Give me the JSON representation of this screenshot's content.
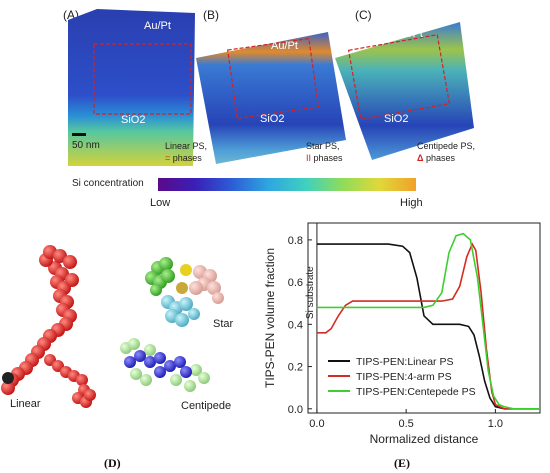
{
  "panels": {
    "a_label": "(A)",
    "b_label": "(B)",
    "c_label": "(C)",
    "d_label": "(D)",
    "e_label": "(E)"
  },
  "tomography": {
    "top_region": "Au/Pt",
    "bottom_region": "SiO2",
    "scale_bar": "50 nm",
    "linear_title": "Linear PS,",
    "linear_symbol": "=",
    "linear_suffix": " phases",
    "star_title": "Star PS,",
    "star_symbol": "II",
    "star_suffix": " phases",
    "centipede_title": "Centipede PS,",
    "centipede_symbol": "Δ",
    "centipede_suffix": " phases"
  },
  "colorbar": {
    "title": "Si concentration",
    "low": "Low",
    "high": "High"
  },
  "molecules": {
    "linear": "Linear",
    "star": "Star",
    "centipede": "Centipede"
  },
  "chart_data": {
    "type": "line",
    "xlabel": "Normalized distance",
    "ylabel": "TIPS-PEN volume fraction",
    "annotation": "Si substrate",
    "xlim": [
      -0.05,
      1.25
    ],
    "ylim": [
      -0.02,
      0.88
    ],
    "xticks": [
      "0.0",
      "0.5",
      "1.0"
    ],
    "yticks": [
      "0.0",
      "0.2",
      "0.4",
      "0.6",
      "0.8"
    ],
    "series": [
      {
        "name": "TIPS-PEN:Linear PS",
        "color": "#111111",
        "x": [
          0.0,
          0.1,
          0.2,
          0.3,
          0.4,
          0.48,
          0.52,
          0.56,
          0.6,
          0.65,
          0.8,
          0.85,
          0.88,
          0.91,
          0.94,
          0.97,
          1.0,
          1.05,
          1.1,
          1.2,
          1.25
        ],
        "y": [
          0.78,
          0.78,
          0.78,
          0.78,
          0.78,
          0.77,
          0.74,
          0.62,
          0.44,
          0.4,
          0.4,
          0.39,
          0.35,
          0.25,
          0.13,
          0.05,
          0.01,
          0.0,
          0.0,
          0.0,
          0.0
        ]
      },
      {
        "name": "TIPS-PEN:4-arm PS",
        "color": "#d42b25",
        "x": [
          0.0,
          0.05,
          0.08,
          0.12,
          0.16,
          0.2,
          0.3,
          0.5,
          0.7,
          0.76,
          0.8,
          0.84,
          0.87,
          0.89,
          0.92,
          0.95,
          0.98,
          1.0,
          1.05,
          1.1,
          1.2,
          1.25
        ],
        "y": [
          0.36,
          0.36,
          0.38,
          0.44,
          0.49,
          0.51,
          0.51,
          0.51,
          0.51,
          0.52,
          0.58,
          0.72,
          0.78,
          0.75,
          0.55,
          0.28,
          0.08,
          0.02,
          0.0,
          0.0,
          0.0,
          0.0
        ]
      },
      {
        "name": "TIPS-PEN:Centepede PS",
        "color": "#3ccf2e",
        "x": [
          0.0,
          0.1,
          0.3,
          0.5,
          0.6,
          0.65,
          0.7,
          0.74,
          0.78,
          0.82,
          0.86,
          0.9,
          0.93,
          0.96,
          0.99,
          1.02,
          1.05,
          1.1,
          1.2,
          1.25
        ],
        "y": [
          0.48,
          0.48,
          0.48,
          0.48,
          0.48,
          0.49,
          0.55,
          0.74,
          0.82,
          0.83,
          0.8,
          0.62,
          0.4,
          0.18,
          0.06,
          0.02,
          0.01,
          0.0,
          0.0,
          0.0
        ]
      }
    ],
    "legend": "bottom-right",
    "grid": false
  }
}
